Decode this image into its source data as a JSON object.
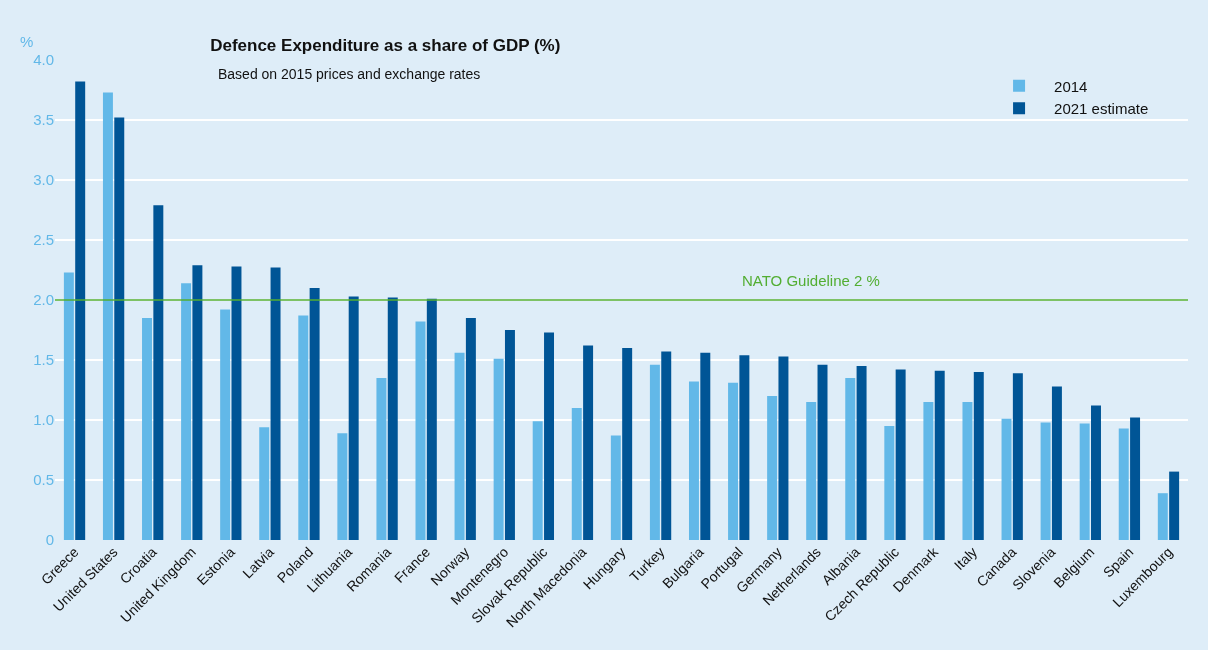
{
  "chart_data": {
    "type": "bar",
    "title": "Defence Expenditure as a share of GDP (%)",
    "subtitle": "Based on 2015 prices and exchange rates",
    "ylabel": "%",
    "categories": [
      "Greece",
      "United States",
      "Croatia",
      "United Kingdom",
      "Estonia",
      "Latvia",
      "Poland",
      "Lithuania",
      "Romania",
      "France",
      "Norway",
      "Montenegro",
      "Slovak Republic",
      "North Macedonia",
      "Hungary",
      "Turkey",
      "Bulgaria",
      "Portugal",
      "Germany",
      "Netherlands",
      "Albania",
      "Czech Republic",
      "Denmark",
      "Italy",
      "Canada",
      "Slovenia",
      "Belgium",
      "Spain",
      "Luxembourg"
    ],
    "series": [
      {
        "name": "2014",
        "color": "#62b8e8",
        "values": [
          2.23,
          3.73,
          1.85,
          2.14,
          1.92,
          0.94,
          1.87,
          0.89,
          1.35,
          1.82,
          1.56,
          1.51,
          0.99,
          1.1,
          0.87,
          1.46,
          1.32,
          1.31,
          1.2,
          1.15,
          1.35,
          0.95,
          1.15,
          1.15,
          1.01,
          0.98,
          0.97,
          0.93,
          0.39
        ]
      },
      {
        "name": "2021 estimate",
        "color": "#005596",
        "values": [
          3.82,
          3.52,
          2.79,
          2.29,
          2.28,
          2.27,
          2.1,
          2.03,
          2.02,
          2.01,
          1.85,
          1.75,
          1.73,
          1.62,
          1.6,
          1.57,
          1.56,
          1.54,
          1.53,
          1.46,
          1.45,
          1.42,
          1.41,
          1.4,
          1.39,
          1.28,
          1.12,
          1.02,
          0.57
        ]
      }
    ],
    "ylim": [
      0,
      4
    ],
    "yticks": [
      0,
      0.5,
      {
        "value": 1,
        "label": "1.0"
      },
      1.5,
      {
        "value": 2,
        "label": "2.0"
      },
      2.5,
      {
        "value": 3,
        "label": "3.0"
      },
      3.5,
      {
        "value": 4,
        "label": "4.0"
      }
    ],
    "grid": "y",
    "legend": "top right",
    "ref_lines": [
      {
        "axis": "y",
        "value": 2,
        "label": "NATO Guideline 2 %",
        "color": "#52ae32"
      }
    ]
  }
}
